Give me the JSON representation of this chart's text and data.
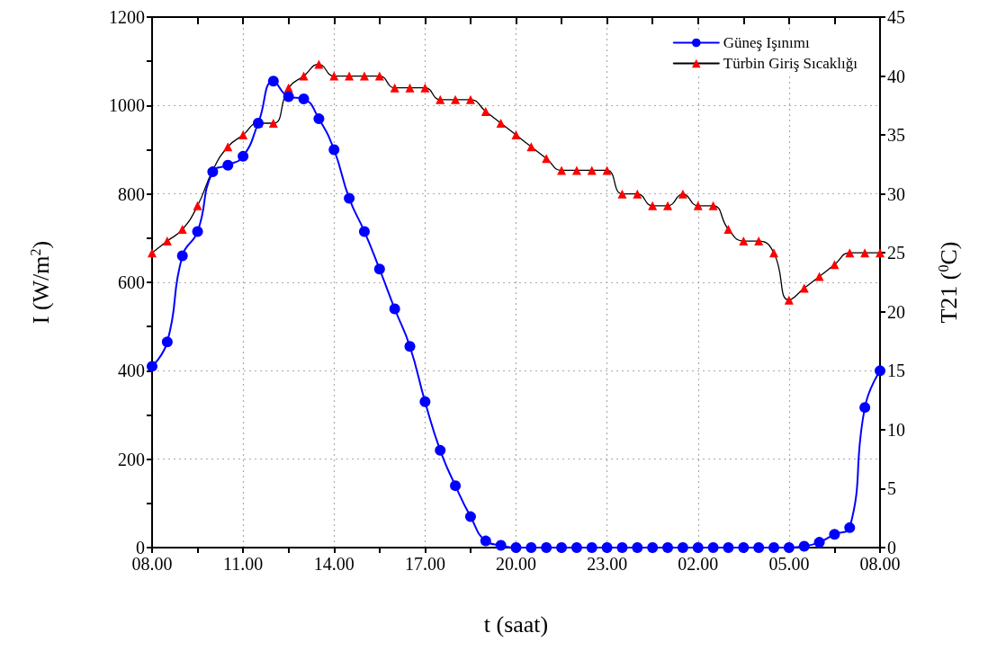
{
  "chart_data": {
    "type": "line",
    "xlabel": "t (saat)",
    "ylabel": "I (W/m$^{2}$)",
    "y2label": "T21 ($^{0}$C)",
    "categories": [
      "08.00",
      null,
      null,
      null,
      null,
      null,
      "11.00",
      null,
      null,
      null,
      null,
      null,
      "14.00",
      null,
      null,
      null,
      null,
      null,
      "17.00",
      null,
      null,
      null,
      null,
      null,
      "20.00",
      null,
      null,
      null,
      null,
      null,
      "23.00",
      null,
      null,
      null,
      null,
      null,
      "02.00",
      null,
      null,
      null,
      null,
      null,
      "05.00",
      null,
      null,
      null,
      null,
      null,
      "08.00"
    ],
    "series": [
      {
        "name": "Güneş Işınımı",
        "color": "#0000ff",
        "marker": "circle",
        "values": [
          410,
          465,
          660,
          715,
          850,
          865,
          885,
          960,
          1055,
          1020,
          1015,
          970,
          900,
          790,
          715,
          630,
          540,
          455,
          330,
          220,
          140,
          70,
          15,
          5,
          0,
          0,
          0,
          0,
          0,
          0,
          0,
          0,
          0,
          0,
          0,
          0,
          0,
          0,
          0,
          0,
          0,
          0,
          0,
          3,
          12,
          30,
          45,
          317,
          400
        ]
      },
      {
        "name": "Türbin Giriş Sıcaklığı",
        "color": "#ff0000",
        "marker": "triangle",
        "axis": "y2",
        "values": [
          25,
          26,
          27,
          29,
          32,
          34,
          35,
          36,
          36,
          39,
          40,
          41,
          40,
          40,
          40,
          40,
          39,
          39,
          39,
          38,
          38,
          38,
          37,
          36,
          35,
          34,
          33,
          32,
          32,
          32,
          32,
          30,
          30,
          29,
          29,
          30,
          29,
          29,
          27,
          26,
          26,
          25,
          21,
          22,
          23,
          24,
          25,
          25,
          25
        ]
      }
    ],
    "ylim": [
      0,
      1200
    ],
    "yticks": [
      0,
      {
        "value": 100,
        "label": null
      },
      200,
      {
        "value": 300,
        "label": null
      },
      400,
      {
        "value": 500,
        "label": null
      },
      600,
      {
        "value": 700,
        "label": null
      },
      800,
      {
        "value": 900,
        "label": null
      },
      1000,
      {
        "value": 1100,
        "label": null
      },
      1200
    ],
    "y2lim": [
      0,
      45
    ],
    "y2ticks": [
      0,
      5,
      10,
      15,
      20,
      25,
      30,
      35,
      40,
      45
    ],
    "grid": true,
    "legend": "top right",
    "line_style": "solid"
  }
}
